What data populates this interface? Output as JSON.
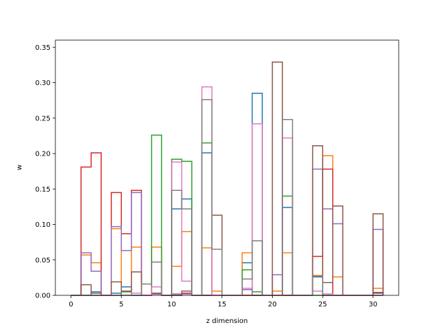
{
  "chart_data": {
    "type": "histogram-step",
    "xlabel": "z dimension",
    "ylabel": "w",
    "xlim": [
      -1.55,
      32.55
    ],
    "ylim": [
      0,
      0.36
    ],
    "x_ticks": [
      0,
      5,
      10,
      15,
      20,
      25,
      30
    ],
    "y_ticks": [
      0.0,
      0.05,
      0.1,
      0.15,
      0.2,
      0.25,
      0.3,
      0.35
    ],
    "bin_width": 1,
    "series": [
      {
        "color": "#1f77b4",
        "values": [
          0,
          0,
          0.005,
          0,
          0.003,
          0.012,
          0,
          0,
          0.002,
          0,
          0.122,
          0.136,
          0,
          0.201,
          0,
          0,
          0,
          0.046,
          0.285,
          0,
          0,
          0.124,
          0,
          0,
          0.026,
          0,
          0,
          0,
          0,
          0,
          0.003
        ]
      },
      {
        "color": "#ff7f0e",
        "values": [
          0,
          0.057,
          0.046,
          0,
          0.094,
          0.005,
          0.068,
          0,
          0.068,
          0,
          0.041,
          0.09,
          0,
          0.067,
          0.006,
          0,
          0,
          0.06,
          0,
          0,
          0.006,
          0.06,
          0,
          0,
          0.028,
          0.197,
          0.026,
          0,
          0,
          0,
          0.01
        ]
      },
      {
        "color": "#2ca02c",
        "values": [
          0,
          0,
          0,
          0,
          0,
          0.005,
          0,
          0,
          0.226,
          0,
          0.192,
          0.189,
          0,
          0.215,
          0,
          0,
          0,
          0.036,
          0.005,
          0,
          0,
          0.14,
          0,
          0,
          0,
          0,
          0,
          0,
          0,
          0,
          0
        ]
      },
      {
        "color": "#d62728",
        "values": [
          0,
          0.181,
          0.201,
          0,
          0.145,
          0.087,
          0.148,
          0,
          0.002,
          0,
          0,
          0.003,
          0,
          0,
          0,
          0,
          0,
          0,
          0,
          0,
          0,
          0,
          0,
          0,
          0.055,
          0.178,
          0,
          0,
          0,
          0,
          0.004
        ]
      },
      {
        "color": "#9467bd",
        "values": [
          0,
          0.06,
          0.034,
          0,
          0.097,
          0.063,
          0.145,
          0,
          0.002,
          0,
          0.002,
          0.002,
          0,
          0,
          0,
          0,
          0,
          0.008,
          0,
          0,
          0.029,
          0,
          0,
          0,
          0.178,
          0.122,
          0.101,
          0,
          0,
          0,
          0.093
        ]
      },
      {
        "color": "#8c564b",
        "values": [
          0,
          0.015,
          0.003,
          0,
          0.019,
          0.006,
          0.033,
          0,
          0.003,
          0,
          0,
          0.006,
          0,
          0,
          0.113,
          0,
          0,
          0,
          0,
          0,
          0.329,
          0,
          0,
          0,
          0.211,
          0.018,
          0.126,
          0,
          0,
          0,
          0.115
        ]
      },
      {
        "color": "#e377c2",
        "values": [
          0,
          0,
          0,
          0,
          0,
          0,
          0.003,
          0,
          0.012,
          0,
          0.188,
          0.02,
          0,
          0.294,
          0,
          0,
          0,
          0.01,
          0.242,
          0,
          0,
          0.222,
          0,
          0,
          0.006,
          0.002,
          0,
          0,
          0,
          0,
          0
        ]
      },
      {
        "color": "#7f7f7f",
        "values": [
          0,
          0,
          0,
          0,
          0,
          0,
          0,
          0.016,
          0.047,
          0,
          0.148,
          0.122,
          0,
          0.276,
          0.065,
          0,
          0,
          0.023,
          0.077,
          0,
          0,
          0.248,
          0,
          0,
          0.027,
          0,
          0,
          0,
          0,
          0,
          0
        ]
      }
    ]
  }
}
